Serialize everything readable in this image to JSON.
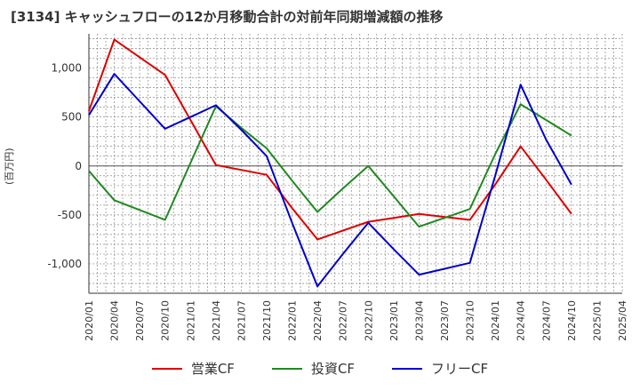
{
  "chart_data": {
    "type": "line",
    "title": "[3134]  キャッシュフローの12か月移動合計の対前年同期増減額の推移",
    "ylabel": "(百万円)",
    "xlabel": "",
    "ylim": [
      -1300,
      1350
    ],
    "yticks": [
      1000,
      500,
      0,
      -500,
      -1000
    ],
    "ytick_labels": [
      "1,000",
      "500",
      "0",
      "-500",
      "-1,000"
    ],
    "categories": [
      "2020/01",
      "2020/04",
      "2020/07",
      "2020/10",
      "2021/01",
      "2021/04",
      "2021/07",
      "2021/10",
      "2022/01",
      "2022/04",
      "2022/07",
      "2022/10",
      "2023/01",
      "2023/04",
      "2023/07",
      "2023/10",
      "2024/01",
      "2024/04",
      "2024/07",
      "2024/10",
      "2025/01",
      "2025/04"
    ],
    "grid": true,
    "legend_position": "bottom",
    "series": [
      {
        "name": "営業CF",
        "color": "#dd0000",
        "values": [
          560,
          1290,
          1110,
          930,
          470,
          10,
          -40,
          -90,
          -430,
          -750,
          -660,
          -570,
          -530,
          -490,
          -520,
          -550,
          -190,
          200,
          -140,
          -490,
          null,
          null
        ]
      },
      {
        "name": "投資CF",
        "color": "#228822",
        "values": [
          -50,
          -350,
          -450,
          -550,
          30,
          610,
          390,
          180,
          -150,
          -470,
          -230,
          0,
          -310,
          -620,
          -530,
          -440,
          120,
          630,
          470,
          310,
          null,
          null
        ]
      },
      {
        "name": "フリーCF",
        "color": "#0000cc",
        "values": [
          520,
          940,
          660,
          380,
          500,
          620,
          370,
          100,
          -580,
          -1230,
          -900,
          -580,
          -850,
          -1110,
          -1050,
          -990,
          -100,
          830,
          270,
          -190,
          null,
          null
        ]
      }
    ]
  }
}
